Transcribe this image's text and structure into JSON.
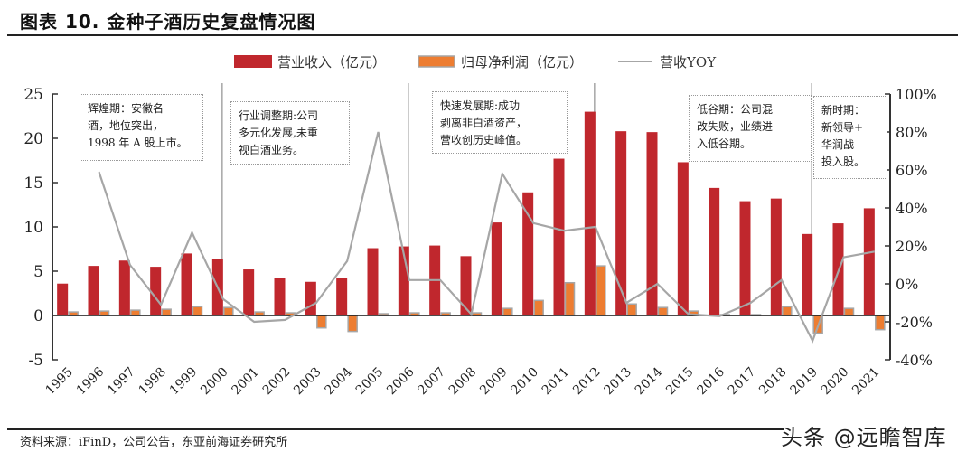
{
  "header": {
    "title": "图表 10. 金种子酒历史复盘情况图"
  },
  "footer": {
    "source": "资料来源：iFinD，公司公告，东亚前海证券研究所",
    "watermark": "头条 @远瞻智库"
  },
  "annotations": [
    {
      "text": "辉煌期：安徽名酒，地位突出，1998 年 A 股上市。",
      "lines": [
        "辉煌期：安徽名",
        "酒，地位突出，",
        "1998 年 A 股上市。"
      ]
    },
    {
      "text": "行业调整期:公司多元化发展,未重视白酒业务。",
      "lines": [
        "行业调整期:公司",
        "多元化发展,未重",
        "视白酒业务。"
      ]
    },
    {
      "text": "快速发展期:成功剥离非白酒资产，营收创历史峰值。",
      "lines": [
        "快速发展期:成功",
        "剥离非白酒资产，",
        "营收创历史峰值。"
      ]
    },
    {
      "text": "低谷期：公司混改失败，业绩进入低谷期。",
      "lines": [
        "低谷期：公司混",
        "改失败，业绩进",
        "入低谷期。"
      ]
    },
    {
      "text": "新时期：新领导+华润战投入股。",
      "lines": [
        "新时期：",
        "新领导+",
        "华润战",
        "投入股。"
      ]
    }
  ],
  "chart_data": {
    "type": "bar",
    "title": "图表 10. 金种子酒历史复盘情况图",
    "xlabel": "",
    "ylabel": "",
    "categories": [
      "1995",
      "1996",
      "1997",
      "1998",
      "1999",
      "2000",
      "2001",
      "2002",
      "2003",
      "2004",
      "2005",
      "2006",
      "2007",
      "2008",
      "2009",
      "2010",
      "2011",
      "2012",
      "2013",
      "2014",
      "2015",
      "2016",
      "2017",
      "2018",
      "2019",
      "2020",
      "2021"
    ],
    "series": [
      {
        "name": "营业收入（亿元）",
        "type": "bar",
        "axis": "left",
        "color": "#c0272d",
        "values": [
          3.6,
          5.6,
          6.2,
          5.5,
          7.0,
          6.4,
          5.2,
          4.2,
          3.8,
          4.2,
          7.6,
          7.8,
          7.9,
          6.7,
          10.5,
          13.9,
          17.7,
          23.0,
          20.8,
          20.7,
          17.3,
          14.4,
          12.9,
          13.2,
          9.2,
          10.4,
          12.1
        ]
      },
      {
        "name": "归母净利润（亿元）",
        "type": "bar",
        "axis": "left",
        "color": "#ed7d31",
        "values": [
          0.4,
          0.5,
          0.6,
          0.7,
          1.0,
          0.9,
          0.4,
          0.3,
          -1.4,
          -1.8,
          0.2,
          0.3,
          0.3,
          0.3,
          0.8,
          1.7,
          3.7,
          5.6,
          1.3,
          0.9,
          0.5,
          0.1,
          0.1,
          1.0,
          -2.0,
          0.8,
          -1.6
        ]
      },
      {
        "name": "营收YOY",
        "type": "line",
        "axis": "right",
        "color": "#a6a6a6",
        "values": [
          null,
          59,
          10,
          -11,
          27,
          -8,
          -20,
          -19,
          -10,
          12,
          80,
          2,
          2,
          -16,
          58,
          32,
          28,
          30,
          -10,
          0,
          -16,
          -17,
          -10,
          2,
          -30,
          14,
          17
        ]
      }
    ],
    "ylim": [
      -5,
      25
    ],
    "yticks": [
      "-5",
      "0",
      "5",
      "10",
      "15",
      "20",
      "25"
    ],
    "y2lim": [
      -40,
      100
    ],
    "y2ticks": [
      "-40%",
      "-20%",
      "0%",
      "20%",
      "40%",
      "60%",
      "80%",
      "100%"
    ],
    "period_dividers": [
      "2000",
      "2006",
      "2012",
      "2019"
    ],
    "legend": {
      "position": "top",
      "items": [
        "营业收入（亿元）",
        "归母净利润（亿元）",
        "营收YOY"
      ]
    },
    "grid": false
  }
}
